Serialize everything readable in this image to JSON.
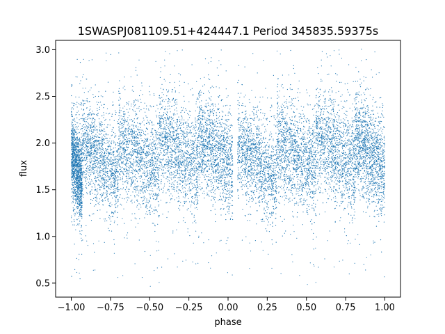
{
  "chart_data": {
    "type": "scatter",
    "title": "1SWASPJ081109.51+424447.1 Period 345835.59375s",
    "xlabel": "phase",
    "ylabel": "flux",
    "xlim": [
      -1.1,
      1.1
    ],
    "ylim": [
      0.35,
      3.1
    ],
    "xticks": [
      -1.0,
      -0.75,
      -0.5,
      -0.25,
      0.0,
      0.25,
      0.5,
      0.75,
      1.0
    ],
    "xtick_labels": [
      "−1.00",
      "−0.75",
      "−0.50",
      "−0.25",
      "0.00",
      "0.25",
      "0.50",
      "0.75",
      "1.00"
    ],
    "yticks": [
      0.5,
      1.0,
      1.5,
      2.0,
      2.5,
      3.0
    ],
    "ytick_labels": [
      "0.5",
      "1.0",
      "1.5",
      "2.0",
      "2.5",
      "3.0"
    ],
    "grid": false,
    "marker_color": "#1f77b4",
    "series": [
      {
        "description_of_distribution": "phase-folded light curve, repeating sawtooth: each cycle of width 0.25 jumps up near 2.5 then decays to ~1.6",
        "clumps": [
          {
            "x": [
              -1.0,
              -0.93
            ],
            "y_center": 1.65,
            "y_spread": 0.22
          },
          {
            "x": [
              -0.93,
              -0.7
            ],
            "y_center": 1.75,
            "y_spread": 0.25
          },
          {
            "x": [
              -0.7,
              -0.44
            ],
            "y_center": 1.78,
            "y_spread": 0.26
          },
          {
            "x": [
              -0.44,
              -0.19
            ],
            "y_center": 1.85,
            "y_spread": 0.27
          },
          {
            "x": [
              -0.19,
              0.03
            ],
            "y_center": 1.82,
            "y_spread": 0.26
          },
          {
            "x": [
              0.06,
              0.31
            ],
            "y_center": 1.72,
            "y_spread": 0.24
          },
          {
            "x": [
              0.31,
              0.56
            ],
            "y_center": 1.8,
            "y_spread": 0.26
          },
          {
            "x": [
              0.56,
              0.81
            ],
            "y_center": 1.85,
            "y_spread": 0.27
          },
          {
            "x": [
              0.81,
              1.0
            ],
            "y_center": 1.8,
            "y_spread": 0.26
          }
        ]
      }
    ]
  }
}
